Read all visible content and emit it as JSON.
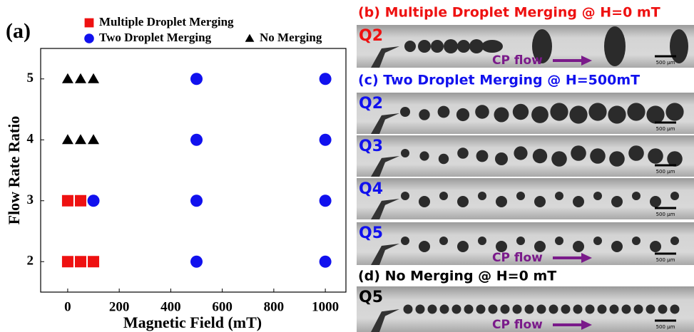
{
  "chart_data": {
    "type": "scatter",
    "panel_label": "(a)",
    "xlabel": "Magnetic Field (mT)",
    "ylabel": "Flow Rate Ratio",
    "xlim": [
      -105,
      1080
    ],
    "ylim": [
      1.5,
      5.5
    ],
    "xticks": [
      0,
      200,
      400,
      600,
      800,
      1000
    ],
    "yticks": [
      2,
      3,
      4,
      5
    ],
    "series": [
      {
        "name": "Multiple Droplet Merging",
        "color": "#ee1111",
        "marker": "square",
        "x": [
          0,
          50,
          0,
          50,
          100
        ],
        "y": [
          3,
          3,
          2,
          2,
          2
        ]
      },
      {
        "name": "Two Droplet Merging",
        "color": "#1111ee",
        "marker": "circle",
        "x": [
          100,
          500,
          500,
          500,
          500,
          1000,
          1000,
          1000,
          1000
        ],
        "y": [
          3,
          5,
          4,
          3,
          2,
          5,
          4,
          3,
          2
        ]
      },
      {
        "name": "No Merging",
        "color": "#000000",
        "marker": "triangle",
        "x": [
          0,
          50,
          100,
          0,
          50,
          100
        ],
        "y": [
          5,
          5,
          5,
          4,
          4,
          4
        ]
      }
    ]
  },
  "panels": [
    {
      "title": "(b) Multiple Droplet Merging @ H=0 mT",
      "color": "#ee1111",
      "images": [
        {
          "label": "Q2",
          "scale": "500 μm",
          "flow": "CP flow"
        }
      ]
    },
    {
      "title": "(c) Two Droplet Merging @ H=500mT",
      "color": "#1111ee",
      "images": [
        {
          "label": "Q2",
          "scale": "500 μm"
        },
        {
          "label": "Q3",
          "scale": "500 μm"
        },
        {
          "label": "Q4",
          "scale": "500 μm"
        },
        {
          "label": "Q5",
          "scale": "500 μm",
          "flow": "CP flow"
        }
      ]
    },
    {
      "title": "(d) No Merging @ H=0 mT",
      "color": "#000000",
      "images": [
        {
          "label": "Q5",
          "scale": "500 μm",
          "flow": "CP flow"
        }
      ]
    }
  ]
}
